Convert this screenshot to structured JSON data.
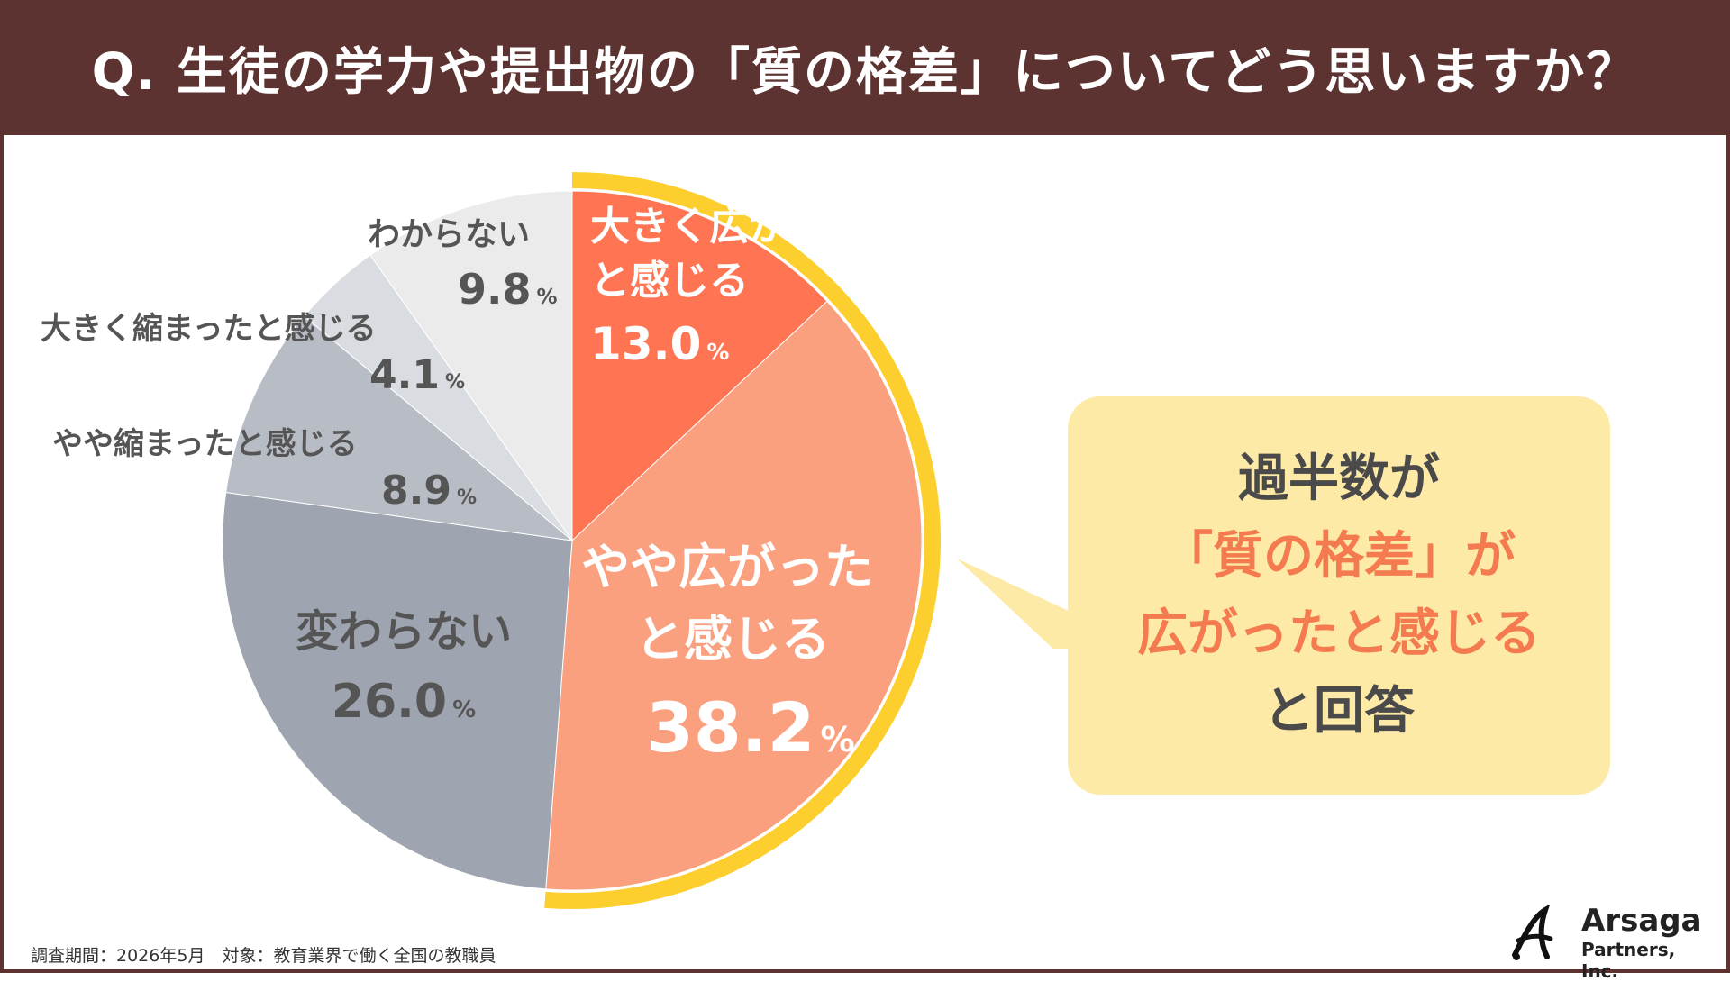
{
  "header": {
    "title": "Q. 生徒の学力や提出物の「質の格差」についてどう思いますか？"
  },
  "chart_data": {
    "type": "pie",
    "title": "Q. 生徒の学力や提出物の「質の格差」についてどう思いますか？",
    "unit": "%",
    "slices": [
      {
        "label": "大きく広がったと感じる",
        "value": 13.0,
        "color": "#ff7452"
      },
      {
        "label": "やや広がったと感じる",
        "value": 38.2,
        "color": "#fba07e"
      },
      {
        "label": "変わらない",
        "value": 26.0,
        "color": "#9fa5b0"
      },
      {
        "label": "やや縮まったと感じる",
        "value": 8.9,
        "color": "#b8bdc5"
      },
      {
        "label": "大きく縮まったと感じる",
        "value": 4.1,
        "color": "#d9dce0"
      },
      {
        "label": "わからない",
        "value": 9.8,
        "color": "#ebebeb"
      }
    ],
    "highlight_color": "#fdcf2e"
  },
  "labels": {
    "s0_line1": "大きく広がった",
    "s0_line2": "と感じる",
    "s0_value": "13.0",
    "s1_line1": "やや広がった",
    "s1_line2": "と感じる",
    "s1_value": "38.2",
    "s2_line1": "変わらない",
    "s2_value": "26.0",
    "s3_line1": "やや縮まったと感じる",
    "s3_value": "8.9",
    "s4_line1": "大きく縮まったと感じる",
    "s4_value": "4.1",
    "s5_line1": "わからない",
    "s5_value": "9.8",
    "pct": "%"
  },
  "callout": {
    "line1": "過半数が",
    "line2": "「質の格差」が",
    "line3": "広がったと感じる",
    "line4": "と回答",
    "bg_color": "#fdeaa6",
    "accent_color": "#f47a50"
  },
  "footer": {
    "text": "調査期間：2026年5月　対象：教育業界で働く全国の教職員"
  },
  "logo": {
    "name": "Arsaga",
    "sub": "Partners, Inc."
  }
}
